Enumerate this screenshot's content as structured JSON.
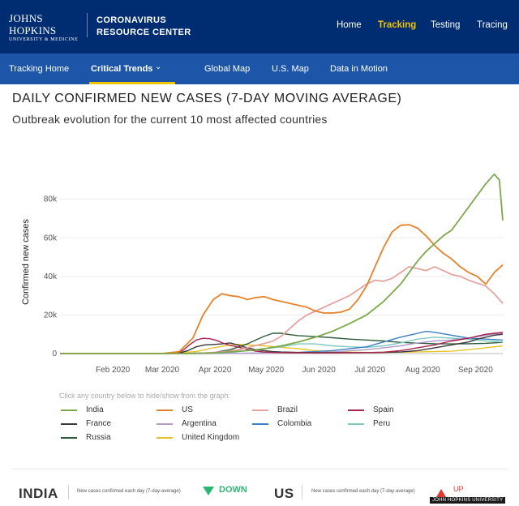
{
  "header": {
    "brand_line1": "JOHNS HOPKINS",
    "brand_line2": "UNIVERSITY & MEDICINE",
    "center_line1": "CORONAVIRUS",
    "center_line2": "RESOURCE CENTER",
    "nav": [
      "Home",
      "Tracking",
      "Testing",
      "Tracing"
    ],
    "active_nav": "Tracking",
    "accent_color": "#f1c400",
    "bar_color": "#002d72"
  },
  "subnav": {
    "items": [
      "Tracking Home",
      "Critical Trends",
      "Global Map",
      "U.S. Map",
      "Data in Motion"
    ],
    "active": "Critical Trends",
    "bar_color": "#1d56a8"
  },
  "page": {
    "title": "DAILY CONFIRMED NEW CASES (7-DAY MOVING AVERAGE)",
    "subtitle": "Outbreak evolution for the current 10 most affected countries"
  },
  "chart_data": {
    "type": "line",
    "ylabel": "Confirmed new cases",
    "xlabel": "",
    "ylim": [
      0,
      95000
    ],
    "yticks": [
      0,
      20000,
      40000,
      60000,
      80000
    ],
    "ytick_labels": [
      "0",
      "20k",
      "40k",
      "60k",
      "80k"
    ],
    "xticks": [
      "Feb 2020",
      "Mar 2020",
      "Apr 2020",
      "May 2020",
      "Jun 2020",
      "Jul 2020",
      "Aug 2020",
      "Sep 2020"
    ],
    "xtick_days": [
      31,
      60,
      91,
      121,
      152,
      182,
      213,
      244
    ],
    "x_range_days": [
      0,
      260
    ],
    "x_note": "x values are days since 2020-01-01",
    "series": [
      {
        "name": "India",
        "color": "#7da84a",
        "x": [
          0,
          60,
          75,
          90,
          100,
          110,
          120,
          130,
          140,
          150,
          160,
          170,
          180,
          190,
          200,
          210,
          215,
          220,
          225,
          230,
          235,
          240,
          245,
          250,
          255,
          258,
          260
        ],
        "values": [
          0,
          0,
          50,
          300,
          900,
          1500,
          2500,
          4000,
          6000,
          8500,
          11500,
          15500,
          20000,
          27000,
          36000,
          48000,
          53000,
          57000,
          61000,
          64000,
          70000,
          76000,
          82000,
          88000,
          93000,
          90000,
          69000
        ]
      },
      {
        "name": "US",
        "color": "#e8822a",
        "x": [
          0,
          60,
          70,
          78,
          84,
          90,
          95,
          100,
          105,
          110,
          115,
          120,
          125,
          130,
          135,
          140,
          145,
          150,
          155,
          160,
          165,
          170,
          175,
          180,
          185,
          190,
          195,
          200,
          205,
          210,
          215,
          220,
          225,
          230,
          235,
          240,
          245,
          250,
          255,
          260
        ],
        "values": [
          0,
          0,
          1000,
          8000,
          20000,
          28000,
          31000,
          30000,
          29500,
          28000,
          29000,
          29500,
          28000,
          27000,
          26000,
          25000,
          24000,
          22000,
          21000,
          21000,
          21500,
          23000,
          28000,
          35000,
          45000,
          55000,
          63000,
          66500,
          66800,
          65000,
          61000,
          56000,
          52000,
          49000,
          45000,
          42000,
          40000,
          36000,
          42000,
          46000
        ]
      },
      {
        "name": "Brazil",
        "color": "#e3a4a0",
        "x": [
          0,
          60,
          75,
          85,
          90,
          95,
          100,
          105,
          110,
          115,
          120,
          125,
          130,
          135,
          140,
          145,
          150,
          155,
          160,
          165,
          170,
          175,
          180,
          185,
          190,
          195,
          200,
          205,
          210,
          215,
          220,
          225,
          230,
          235,
          240,
          245,
          250,
          255,
          260
        ],
        "values": [
          0,
          0,
          50,
          300,
          600,
          900,
          1300,
          2000,
          3000,
          4200,
          5200,
          6500,
          9000,
          13000,
          17000,
          20000,
          22000,
          24000,
          26000,
          28000,
          30000,
          33000,
          36000,
          38000,
          37500,
          39000,
          42000,
          45000,
          44000,
          43000,
          45000,
          43000,
          41000,
          40000,
          38000,
          36500,
          35000,
          31000,
          26000
        ]
      },
      {
        "name": "Spain",
        "color": "#a6224c",
        "x": [
          0,
          60,
          68,
          72,
          76,
          80,
          84,
          88,
          92,
          96,
          100,
          104,
          110,
          115,
          120,
          125,
          135,
          150,
          170,
          180,
          190,
          200,
          210,
          220,
          230,
          240,
          245,
          250,
          255,
          260
        ],
        "values": [
          0,
          0,
          200,
          1500,
          4500,
          7000,
          7900,
          7700,
          6800,
          5300,
          4200,
          3500,
          2200,
          1200,
          800,
          600,
          400,
          300,
          400,
          500,
          700,
          1500,
          3000,
          4500,
          6500,
          8000,
          9000,
          10000,
          10500,
          11000
        ]
      },
      {
        "name": "France",
        "color": "#3a3a3a",
        "x": [
          0,
          60,
          70,
          75,
          80,
          85,
          90,
          95,
          100,
          105,
          110,
          115,
          120,
          125,
          130,
          140,
          150,
          170,
          180,
          190,
          200,
          210,
          220,
          230,
          240,
          245,
          250,
          255,
          260
        ],
        "values": [
          0,
          0,
          300,
          1500,
          3500,
          4500,
          4700,
          5000,
          5500,
          4300,
          3000,
          2000,
          1500,
          1000,
          800,
          600,
          500,
          500,
          500,
          600,
          800,
          1500,
          3000,
          4500,
          6000,
          7500,
          8500,
          9500,
          10000
        ]
      },
      {
        "name": "Argentina",
        "color": "#b39ac7",
        "x": [
          0,
          60,
          100,
          120,
          140,
          160,
          180,
          190,
          200,
          210,
          220,
          230,
          240,
          250,
          260
        ],
        "values": [
          0,
          0,
          100,
          200,
          400,
          800,
          2000,
          3000,
          4000,
          5500,
          6500,
          7000,
          8000,
          9500,
          10500
        ]
      },
      {
        "name": "Colombia",
        "color": "#3a7fc1",
        "x": [
          0,
          60,
          100,
          120,
          140,
          160,
          180,
          190,
          200,
          210,
          215,
          220,
          230,
          240,
          250,
          260
        ],
        "values": [
          0,
          0,
          100,
          300,
          600,
          1500,
          3500,
          6000,
          8500,
          10500,
          11500,
          11000,
          9500,
          8000,
          7500,
          7000
        ]
      },
      {
        "name": "Peru",
        "color": "#7ec8c0",
        "x": [
          0,
          60,
          90,
          100,
          110,
          120,
          130,
          140,
          150,
          160,
          170,
          180,
          190,
          200,
          210,
          220,
          230,
          240,
          250,
          260
        ],
        "values": [
          0,
          0,
          100,
          500,
          1500,
          2500,
          3500,
          5000,
          5000,
          4000,
          3500,
          3200,
          4000,
          5500,
          7500,
          8500,
          8000,
          7500,
          6500,
          6000
        ]
      },
      {
        "name": "Russia",
        "color": "#2e5c3a",
        "x": [
          0,
          60,
          80,
          90,
          100,
          110,
          115,
          120,
          125,
          130,
          135,
          140,
          150,
          160,
          170,
          180,
          190,
          200,
          210,
          220,
          230,
          240,
          250,
          260
        ],
        "values": [
          0,
          0,
          100,
          500,
          2000,
          5000,
          7000,
          9000,
          10500,
          10500,
          9800,
          9300,
          8800,
          8200,
          7500,
          7000,
          6500,
          5800,
          5400,
          5100,
          5000,
          5100,
          5300,
          5800
        ]
      },
      {
        "name": "United Kingdom",
        "color": "#e8c42a",
        "x": [
          0,
          60,
          80,
          90,
          100,
          105,
          110,
          120,
          130,
          140,
          150,
          160,
          170,
          180,
          190,
          200,
          210,
          220,
          230,
          240,
          250,
          260
        ],
        "values": [
          0,
          0,
          1000,
          3000,
          4500,
          4800,
          4500,
          4000,
          3200,
          2500,
          1500,
          1000,
          700,
          600,
          600,
          700,
          900,
          1000,
          1200,
          2000,
          3000,
          4000
        ]
      }
    ]
  },
  "legend": {
    "hint": "Click any country below to hide/show from the graph:",
    "items": [
      "India",
      "US",
      "Brazil",
      "Spain",
      "France",
      "Argentina",
      "Colombia",
      "Peru",
      "Russia",
      "United Kingdom"
    ]
  },
  "summary": [
    {
      "country": "INDIA",
      "description": "New cases confirmed each day (7-day-average)",
      "trend": "DOWN",
      "color": "#2bb673"
    },
    {
      "country": "US",
      "description": "New cases confirmed each day (7-day-average)",
      "trend": "UP",
      "color": "#e53935"
    }
  ],
  "watermark": "JOHN HOPKINS UNIVERSITY"
}
